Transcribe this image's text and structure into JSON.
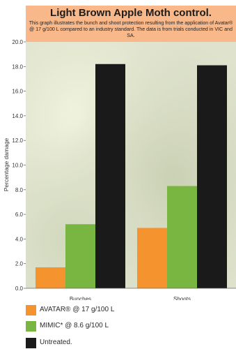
{
  "title": "Light Brown Apple Moth control.",
  "subtitle": "This graph illustrates the bunch and shoot protection resulting from the application of Avatar® @ 17 g/100 L compared to an industry standard. The data is from trials conducted in VIC and SA.",
  "colors": {
    "title_background": "#f9b88a",
    "avatar": "#f5932e",
    "mimic": "#79b541",
    "untreated": "#1a1a1a"
  },
  "legend": [
    {
      "label": "AVATAR® @ 17 g/100 L",
      "color": "#f5932e"
    },
    {
      "label": "MIMIC* @ 8.6 g/100 L",
      "color": "#79b541"
    },
    {
      "label": "Untreated.",
      "color": "#1a1a1a"
    }
  ],
  "chart_data": {
    "type": "bar",
    "title": "Light Brown Apple Moth control.",
    "ylabel": "Percentage damage",
    "xlabel": "",
    "ylim": [
      0,
      20
    ],
    "yticks": [
      "0.0",
      "2.0",
      "4.0",
      "6.0",
      "8.0",
      "10.0",
      "12.0",
      "14.0",
      "16.0",
      "18.0",
      "20.0"
    ],
    "categories": [
      "Bunches",
      "Shoots"
    ],
    "series": [
      {
        "name": "AVATAR® @ 17 g/100 L",
        "color": "#f5932e",
        "values": [
          1.7,
          4.9
        ]
      },
      {
        "name": "MIMIC* @ 8.6 g/100 L",
        "color": "#79b541",
        "values": [
          5.2,
          8.3
        ]
      },
      {
        "name": "Untreated.",
        "color": "#1a1a1a",
        "values": [
          18.2,
          18.1
        ]
      }
    ],
    "grid": false,
    "legend_position": "bottom"
  }
}
